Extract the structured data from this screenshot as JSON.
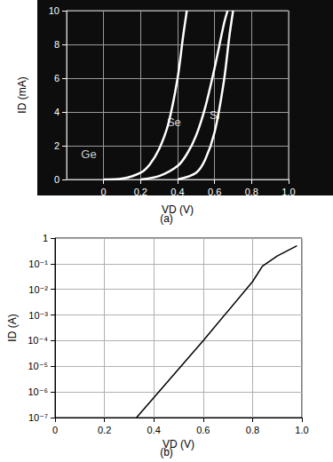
{
  "chart_data": [
    {
      "type": "line",
      "caption": "(a)",
      "x_label": "VD (V)",
      "y_label": "ID (mA)",
      "xlim": [
        -0.2,
        1.0
      ],
      "xticks": [
        0,
        0.2,
        0.4,
        0.6,
        0.8,
        {
          "value": 1.0,
          "label": "1.0"
        }
      ],
      "ylim": [
        0,
        10
      ],
      "yticks": [
        0,
        2,
        4,
        6,
        8,
        10
      ],
      "grid": true,
      "series": [
        {
          "name": "Ge",
          "color": "#ffffff",
          "x": [
            0,
            0.1,
            0.2,
            0.25,
            0.3,
            0.35,
            0.4,
            0.43,
            0.45
          ],
          "values": [
            0,
            0.05,
            0.4,
            0.9,
            1.8,
            3.3,
            6,
            8.5,
            10
          ]
        },
        {
          "name": "Se",
          "color": "#ffffff",
          "x": [
            0.2,
            0.3,
            0.4,
            0.45,
            0.5,
            0.55,
            0.6,
            0.65,
            0.67
          ],
          "values": [
            0,
            0.2,
            0.8,
            1.5,
            2.6,
            4.3,
            6.6,
            9.2,
            10
          ]
        },
        {
          "name": "Si",
          "color": "#ffffff",
          "x": [
            0.4,
            0.5,
            0.55,
            0.6,
            0.65,
            0.68,
            0.7
          ],
          "values": [
            0,
            0.4,
            1.2,
            2.8,
            5.8,
            8.5,
            10
          ]
        }
      ],
      "annotations": [
        {
          "text": "Ge",
          "x": -0.08,
          "y": 1.5
        },
        {
          "text": "Se",
          "x": 0.38,
          "y": 3.4
        },
        {
          "text": "Si",
          "x": 0.6,
          "y": 3.8
        }
      ]
    },
    {
      "type": "line",
      "caption": "(b)",
      "x_label": "VD (V)",
      "y_label": "ID (A)",
      "log": "y",
      "xlim": [
        0,
        1.0
      ],
      "xticks": [
        0,
        0.2,
        0.4,
        0.6,
        0.8,
        {
          "value": 1.0,
          "label": "1.0"
        }
      ],
      "ylim": [
        1e-07,
        1
      ],
      "yticks": [
        {
          "value": 1e-07,
          "label": "10⁻⁷"
        },
        {
          "value": 1e-06,
          "label": "10⁻⁶"
        },
        {
          "value": 1e-05,
          "label": "10⁻⁵"
        },
        {
          "value": 0.0001,
          "label": "10⁻⁴"
        },
        {
          "value": 0.001,
          "label": "10⁻³"
        },
        {
          "value": 0.01,
          "label": "10⁻²"
        },
        {
          "value": 0.1,
          "label": "10⁻¹"
        },
        1
      ],
      "grid": true,
      "series": [
        {
          "name": "ID",
          "color": "#000000",
          "x": [
            0.33,
            0.6,
            0.8,
            0.84,
            0.9,
            0.98
          ],
          "values": [
            1e-07,
            0.0001,
            0.02,
            0.08,
            0.2,
            0.5
          ]
        }
      ]
    }
  ]
}
